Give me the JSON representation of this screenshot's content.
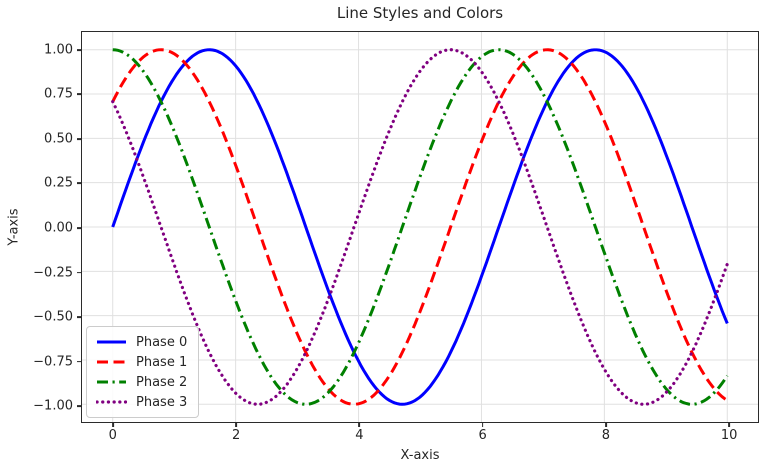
{
  "chart_data": {
    "type": "line",
    "title": "Line Styles and Colors",
    "xlabel": "X-axis",
    "ylabel": "Y-axis",
    "xlim": [
      -0.5,
      10.5
    ],
    "ylim": [
      -1.1,
      1.1
    ],
    "grid": true,
    "grid_color": "#e0e0e0",
    "axes": {
      "background": "#ffffff",
      "spine_color": "#2b2b2b",
      "tick_color": "#2b2b2b",
      "text_color": "#262626"
    },
    "xticks": {
      "values": [
        0,
        2,
        4,
        6,
        8,
        10
      ],
      "labels": [
        "0",
        "2",
        "4",
        "6",
        "8",
        "10"
      ]
    },
    "yticks": {
      "values": [
        1.0,
        0.75,
        0.5,
        0.25,
        0.0,
        -0.25,
        -0.5,
        -0.75,
        -1.0
      ],
      "labels": [
        "1.00",
        "0.75",
        "0.50",
        "0.25",
        "0.00",
        "−0.25",
        "−0.50",
        "−0.75",
        "−1.00"
      ]
    },
    "function": "y = sin(x + phase)",
    "amplitude": 1,
    "x_range": [
      0,
      10
    ],
    "samples": 240,
    "legend": {
      "location": "lower left",
      "entries": [
        "Phase 0",
        "Phase 1",
        "Phase 2",
        "Phase 3"
      ]
    },
    "series": [
      {
        "name": "Phase 0",
        "color": "#0000ff",
        "line_style": "solid",
        "phase": "0",
        "phase_rad": 0
      },
      {
        "name": "Phase 1",
        "color": "#ff0000",
        "line_style": "dashed",
        "phase": "pi/4",
        "phase_rad": 0.7853981633974483
      },
      {
        "name": "Phase 2",
        "color": "#008000",
        "line_style": "dashdot",
        "phase": "pi/2",
        "phase_rad": 1.5707963267948966
      },
      {
        "name": "Phase 3",
        "color": "#800080",
        "line_style": "dotted",
        "phase": "3pi/4",
        "phase_rad": 2.356194490192345
      }
    ]
  }
}
